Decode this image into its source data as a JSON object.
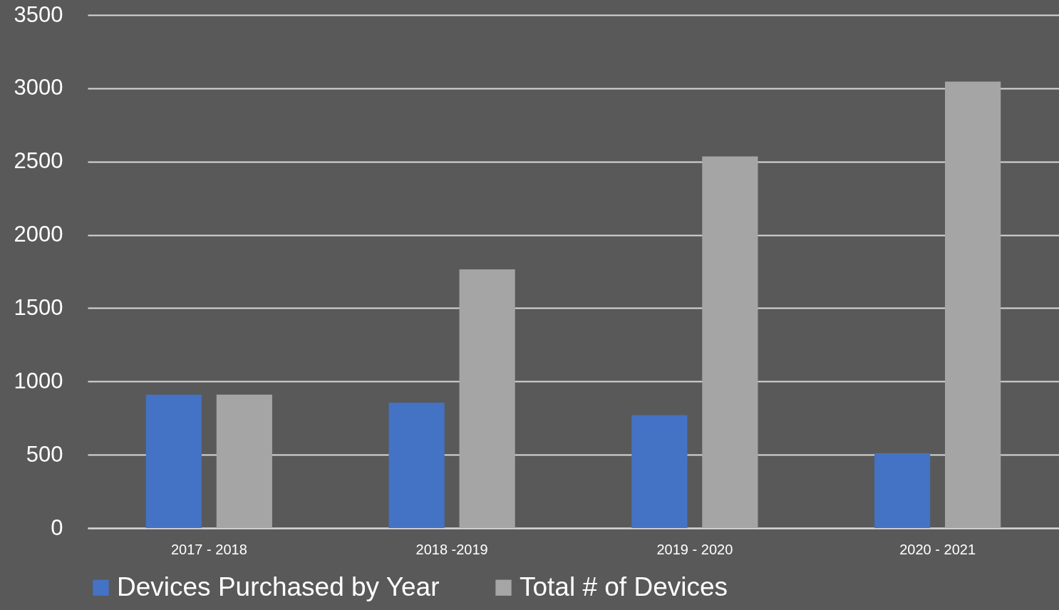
{
  "chart_data": {
    "type": "bar",
    "categories": [
      "2017 - 2018",
      "2018 -2019",
      "2019 - 2020",
      "2020 - 2021"
    ],
    "series": [
      {
        "name": "Devices Purchased by Year",
        "color": "#4472c4",
        "values": [
          910,
          855,
          770,
          510
        ]
      },
      {
        "name": "Total # of Devices",
        "color": "#a5a5a5",
        "values": [
          910,
          1765,
          2535,
          3045
        ]
      }
    ],
    "ylim": [
      0,
      3500
    ],
    "yticks": [
      0,
      500,
      1000,
      1500,
      2000,
      2500,
      3000,
      3500
    ],
    "grid": "y",
    "legend": "bottom"
  }
}
